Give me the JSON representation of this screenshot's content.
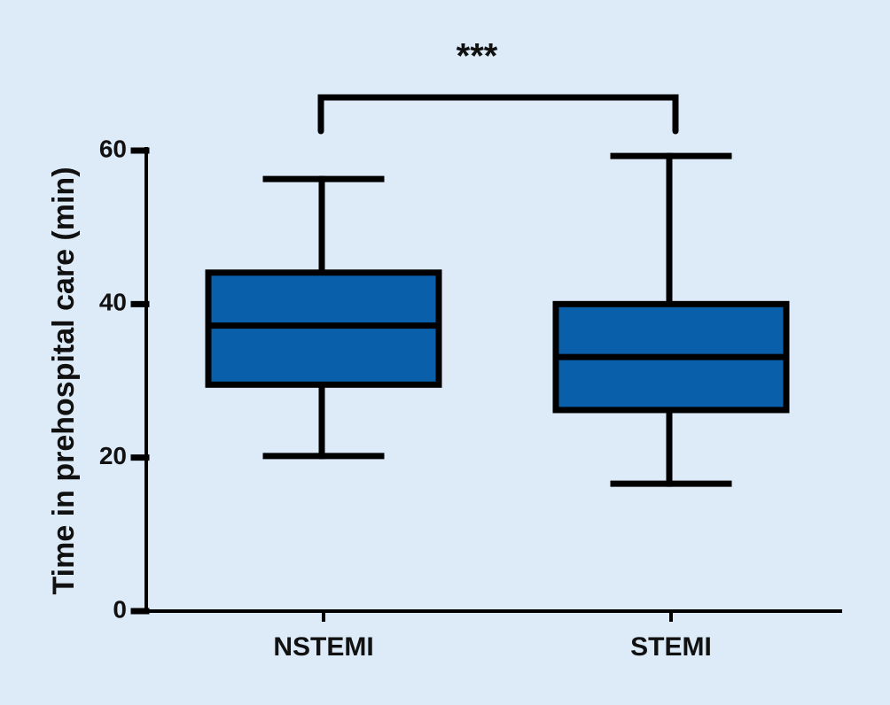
{
  "chart_data": {
    "type": "box",
    "y_label": "Time in prehospital care (min)",
    "categories": [
      "NSTEMI",
      "STEMI"
    ],
    "boxes": [
      {
        "min": 20.2,
        "q1": 29.5,
        "median": 37.2,
        "q3": 44.1,
        "max": 56.3
      },
      {
        "min": 16.6,
        "q1": 26.2,
        "median": 33.1,
        "q3": 40.0,
        "max": 59.3
      }
    ],
    "color": "#0a5fab",
    "ylim": [
      0,
      60
    ],
    "yticks": [
      0,
      20,
      40,
      60
    ],
    "annotation": "***"
  }
}
